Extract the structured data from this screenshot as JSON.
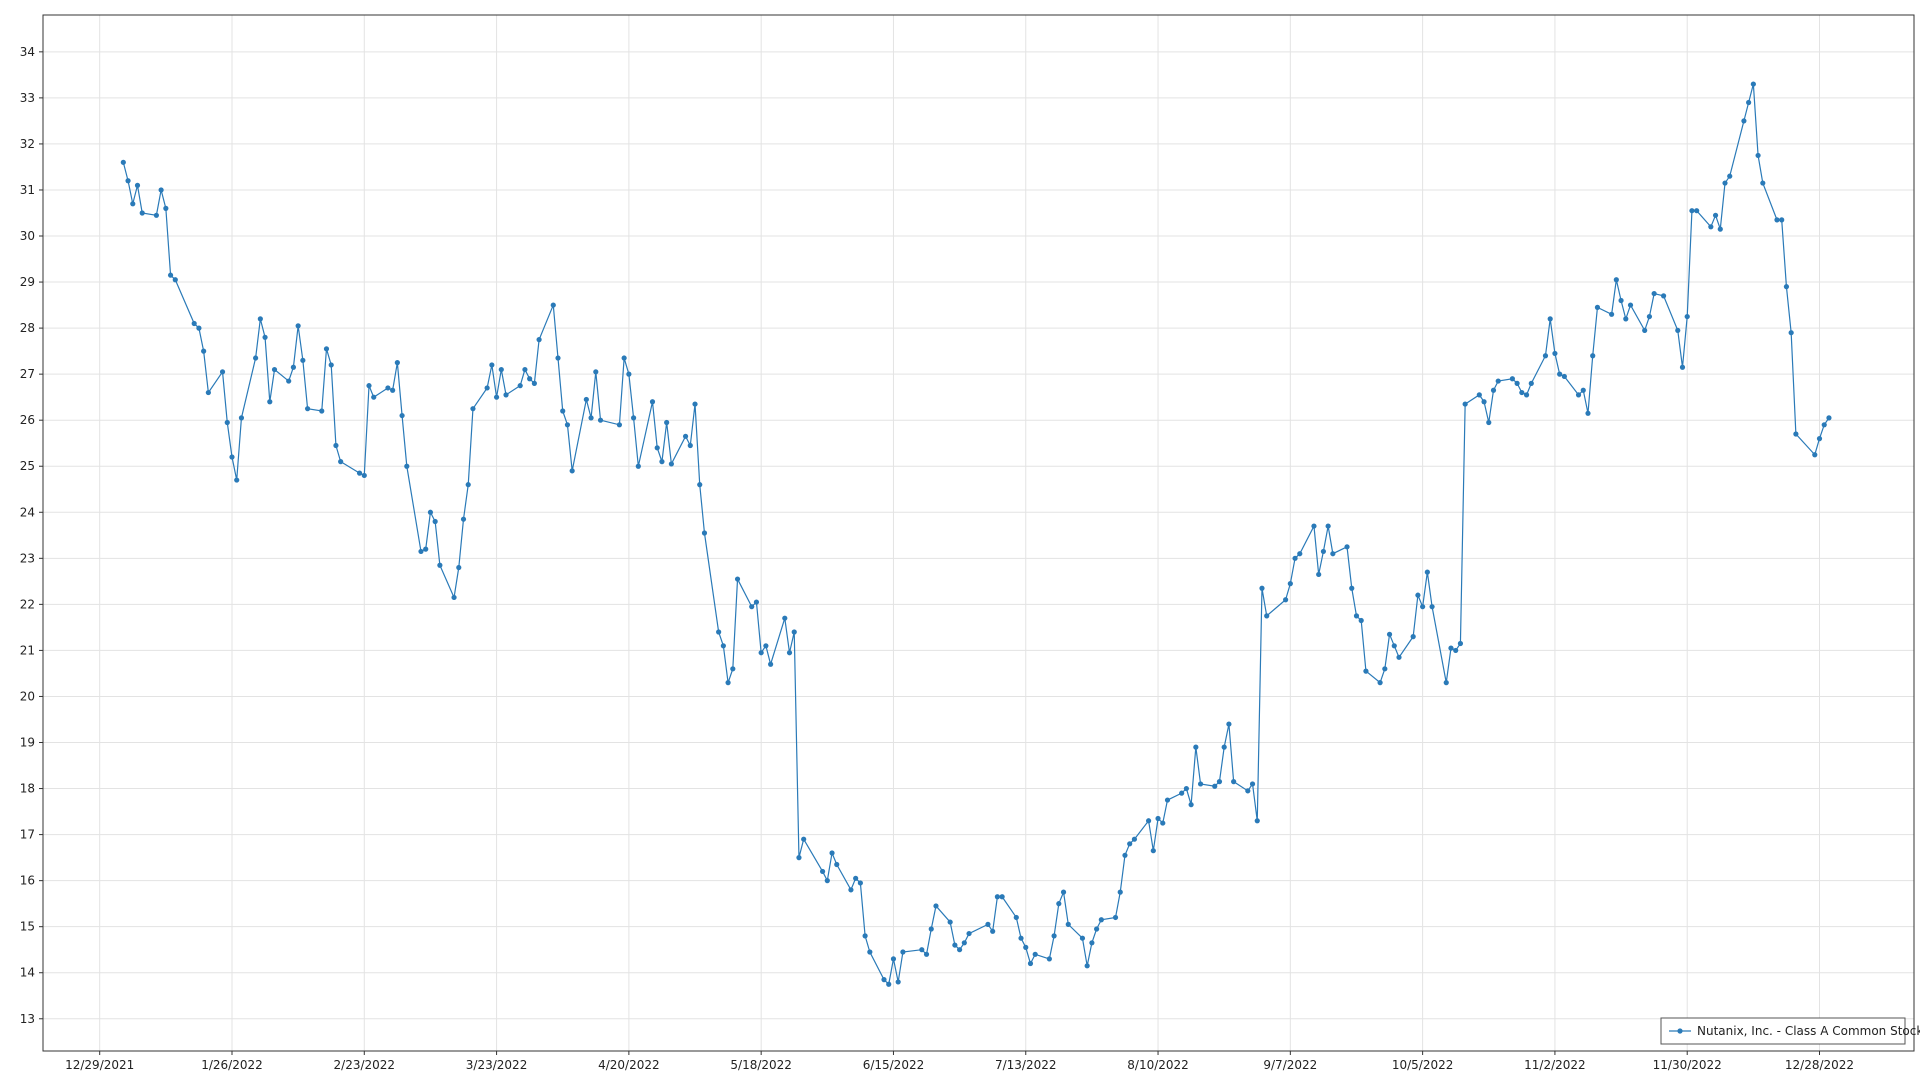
{
  "chart_data": {
    "type": "line",
    "xlim": [
      "12/17/2021",
      "1/17/2023"
    ],
    "xticks": [
      "12/29/2021",
      "1/26/2022",
      "2/23/2022",
      "3/23/2022",
      "4/20/2022",
      "5/18/2022",
      "6/15/2022",
      "7/13/2022",
      "8/10/2022",
      "9/7/2022",
      "10/5/2022",
      "11/2/2022",
      "11/30/2022",
      "12/28/2022"
    ],
    "ylim": [
      12.3,
      34.8
    ],
    "yticks": [
      13,
      14,
      15,
      16,
      17,
      18,
      19,
      20,
      21,
      22,
      23,
      24,
      25,
      26,
      27,
      28,
      29,
      30,
      31,
      32,
      33,
      34
    ],
    "grid": true,
    "legend": "lower right",
    "series": [
      {
        "name": "Nutanix, Inc. - Class A Common Stock",
        "color": "#2a7ab8",
        "x": [
          "1/3/2022",
          "1/4/2022",
          "1/5/2022",
          "1/6/2022",
          "1/7/2022",
          "1/10/2022",
          "1/11/2022",
          "1/12/2022",
          "1/13/2022",
          "1/14/2022",
          "1/18/2022",
          "1/19/2022",
          "1/20/2022",
          "1/21/2022",
          "1/24/2022",
          "1/25/2022",
          "1/26/2022",
          "1/27/2022",
          "1/28/2022",
          "1/31/2022",
          "2/1/2022",
          "2/2/2022",
          "2/3/2022",
          "2/4/2022",
          "2/7/2022",
          "2/8/2022",
          "2/9/2022",
          "2/10/2022",
          "2/11/2022",
          "2/14/2022",
          "2/15/2022",
          "2/16/2022",
          "2/17/2022",
          "2/18/2022",
          "2/22/2022",
          "2/23/2022",
          "2/24/2022",
          "2/25/2022",
          "2/28/2022",
          "3/1/2022",
          "3/2/2022",
          "3/3/2022",
          "3/4/2022",
          "3/7/2022",
          "3/8/2022",
          "3/9/2022",
          "3/10/2022",
          "3/11/2022",
          "3/14/2022",
          "3/15/2022",
          "3/16/2022",
          "3/17/2022",
          "3/18/2022",
          "3/21/2022",
          "3/22/2022",
          "3/23/2022",
          "3/24/2022",
          "3/25/2022",
          "3/28/2022",
          "3/29/2022",
          "3/30/2022",
          "3/31/2022",
          "4/1/2022",
          "4/4/2022",
          "4/5/2022",
          "4/6/2022",
          "4/7/2022",
          "4/8/2022",
          "4/11/2022",
          "4/12/2022",
          "4/13/2022",
          "4/14/2022",
          "4/18/2022",
          "4/19/2022",
          "4/20/2022",
          "4/21/2022",
          "4/22/2022",
          "4/25/2022",
          "4/26/2022",
          "4/27/2022",
          "4/28/2022",
          "4/29/2022",
          "5/2/2022",
          "5/3/2022",
          "5/4/2022",
          "5/5/2022",
          "5/6/2022",
          "5/9/2022",
          "5/10/2022",
          "5/11/2022",
          "5/12/2022",
          "5/13/2022",
          "5/16/2022",
          "5/17/2022",
          "5/18/2022",
          "5/19/2022",
          "5/20/2022",
          "5/23/2022",
          "5/24/2022",
          "5/25/2022",
          "5/26/2022",
          "5/27/2022",
          "5/31/2022",
          "6/1/2022",
          "6/2/2022",
          "6/3/2022",
          "6/6/2022",
          "6/7/2022",
          "6/8/2022",
          "6/9/2022",
          "6/10/2022",
          "6/13/2022",
          "6/14/2022",
          "6/15/2022",
          "6/16/2022",
          "6/17/2022",
          "6/21/2022",
          "6/22/2022",
          "6/23/2022",
          "6/24/2022",
          "6/27/2022",
          "6/28/2022",
          "6/29/2022",
          "6/30/2022",
          "7/1/2022",
          "7/5/2022",
          "7/6/2022",
          "7/7/2022",
          "7/8/2022",
          "7/11/2022",
          "7/12/2022",
          "7/13/2022",
          "7/14/2022",
          "7/15/2022",
          "7/18/2022",
          "7/19/2022",
          "7/20/2022",
          "7/21/2022",
          "7/22/2022",
          "7/25/2022",
          "7/26/2022",
          "7/27/2022",
          "7/28/2022",
          "7/29/2022",
          "8/1/2022",
          "8/2/2022",
          "8/3/2022",
          "8/4/2022",
          "8/5/2022",
          "8/8/2022",
          "8/9/2022",
          "8/10/2022",
          "8/11/2022",
          "8/12/2022",
          "8/15/2022",
          "8/16/2022",
          "8/17/2022",
          "8/18/2022",
          "8/19/2022",
          "8/22/2022",
          "8/23/2022",
          "8/24/2022",
          "8/25/2022",
          "8/26/2022",
          "8/29/2022",
          "8/30/2022",
          "8/31/2022",
          "9/1/2022",
          "9/2/2022",
          "9/6/2022",
          "9/7/2022",
          "9/8/2022",
          "9/9/2022",
          "9/12/2022",
          "9/13/2022",
          "9/14/2022",
          "9/15/2022",
          "9/16/2022",
          "9/19/2022",
          "9/20/2022",
          "9/21/2022",
          "9/22/2022",
          "9/23/2022",
          "9/26/2022",
          "9/27/2022",
          "9/28/2022",
          "9/29/2022",
          "9/30/2022",
          "10/3/2022",
          "10/4/2022",
          "10/5/2022",
          "10/6/2022",
          "10/7/2022",
          "10/10/2022",
          "10/11/2022",
          "10/12/2022",
          "10/13/2022",
          "10/14/2022",
          "10/17/2022",
          "10/18/2022",
          "10/19/2022",
          "10/20/2022",
          "10/21/2022",
          "10/24/2022",
          "10/25/2022",
          "10/26/2022",
          "10/27/2022",
          "10/28/2022",
          "10/31/2022",
          "11/1/2022",
          "11/2/2022",
          "11/3/2022",
          "11/4/2022",
          "11/7/2022",
          "11/8/2022",
          "11/9/2022",
          "11/10/2022",
          "11/11/2022",
          "11/14/2022",
          "11/15/2022",
          "11/16/2022",
          "11/17/2022",
          "11/18/2022",
          "11/21/2022",
          "11/22/2022",
          "11/23/2022",
          "11/25/2022",
          "11/28/2022",
          "11/29/2022",
          "11/30/2022",
          "12/1/2022",
          "12/2/2022",
          "12/5/2022",
          "12/6/2022",
          "12/7/2022",
          "12/8/2022",
          "12/9/2022",
          "12/12/2022",
          "12/13/2022",
          "12/14/2022",
          "12/15/2022",
          "12/16/2022",
          "12/19/2022",
          "12/20/2022",
          "12/21/2022",
          "12/22/2022",
          "12/23/2022",
          "12/27/2022",
          "12/28/2022",
          "12/29/2022",
          "12/30/2022"
        ],
        "values": [
          31.6,
          31.2,
          30.7,
          31.1,
          30.5,
          30.45,
          31.0,
          30.6,
          29.15,
          29.05,
          28.1,
          28.0,
          27.5,
          26.6,
          27.05,
          25.95,
          25.2,
          24.7,
          26.05,
          27.35,
          28.2,
          27.8,
          26.4,
          27.1,
          26.85,
          27.15,
          28.05,
          27.3,
          26.25,
          26.2,
          27.55,
          27.2,
          25.45,
          25.1,
          24.85,
          24.8,
          26.75,
          26.5,
          26.7,
          26.65,
          27.25,
          26.1,
          25.0,
          23.15,
          23.2,
          24.0,
          23.8,
          22.85,
          22.15,
          22.8,
          23.85,
          24.6,
          26.25,
          26.7,
          27.2,
          26.5,
          27.1,
          26.55,
          26.75,
          27.1,
          26.9,
          26.8,
          27.75,
          28.5,
          27.35,
          26.2,
          25.9,
          24.9,
          26.45,
          26.05,
          27.05,
          26.0,
          25.9,
          27.35,
          27.0,
          26.05,
          25.0,
          26.4,
          25.4,
          25.1,
          25.95,
          25.05,
          25.65,
          25.45,
          26.35,
          24.6,
          23.55,
          21.4,
          21.1,
          20.3,
          20.6,
          22.55,
          21.95,
          22.05,
          20.95,
          21.1,
          20.7,
          21.7,
          20.95,
          21.4,
          16.5,
          16.9,
          16.2,
          16.0,
          16.6,
          16.35,
          15.8,
          16.05,
          15.95,
          14.8,
          14.45,
          13.85,
          13.75,
          14.3,
          13.8,
          14.45,
          14.5,
          14.4,
          14.95,
          15.45,
          15.1,
          14.6,
          14.5,
          14.65,
          14.85,
          15.05,
          14.9,
          15.65,
          15.65,
          15.2,
          14.75,
          14.55,
          14.2,
          14.4,
          14.3,
          14.8,
          15.5,
          15.75,
          15.05,
          14.75,
          14.15,
          14.65,
          14.95,
          15.15,
          15.2,
          15.75,
          16.55,
          16.8,
          16.9,
          17.3,
          16.65,
          17.35,
          17.25,
          17.75,
          17.9,
          18.0,
          17.65,
          18.9,
          18.1,
          18.05,
          18.15,
          18.9,
          19.4,
          18.15,
          17.95,
          18.1,
          17.3,
          22.35,
          21.75,
          22.1,
          22.45,
          23.0,
          23.1,
          23.7,
          22.65,
          23.15,
          23.7,
          23.1,
          23.25,
          22.35,
          21.75,
          21.65,
          20.55,
          20.3,
          20.6,
          21.35,
          21.1,
          20.85,
          21.3,
          22.2,
          21.95,
          22.7,
          21.95,
          20.3,
          21.05,
          21.0,
          21.15,
          26.35,
          26.55,
          26.4,
          25.95,
          26.65,
          26.85,
          26.9,
          26.8,
          26.6,
          26.55,
          26.8,
          27.4,
          28.2,
          27.45,
          27.0,
          26.95,
          26.55,
          26.65,
          26.15,
          27.4,
          28.45,
          28.3,
          29.05,
          28.6,
          28.2,
          28.5,
          27.95,
          28.25,
          28.75,
          28.7,
          27.95,
          27.15,
          28.25,
          30.55,
          30.55,
          30.2,
          30.45,
          30.15,
          31.15,
          31.3,
          32.5,
          32.9,
          33.3,
          31.75,
          31.15,
          30.35,
          30.35,
          28.9,
          27.9,
          25.7,
          25.25,
          25.6,
          25.9,
          26.05
        ]
      }
    ]
  }
}
